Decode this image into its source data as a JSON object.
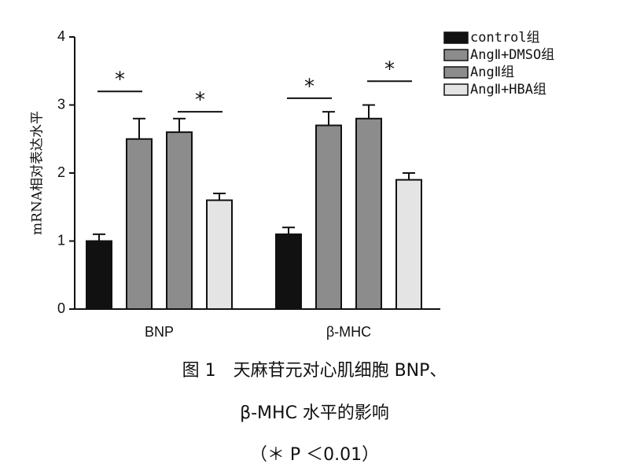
{
  "chart_data": {
    "type": "bar",
    "ylabel": "mRNA相对表达水平",
    "categories": [
      "BNP",
      "β-MHC"
    ],
    "series": [
      {
        "name": "control组",
        "color": "#111111",
        "values": [
          1.0,
          1.1
        ],
        "errors": [
          0.1,
          0.1
        ]
      },
      {
        "name": "AngⅡ+DMSO组",
        "color": "#8c8c8c",
        "values": [
          2.5,
          2.7
        ],
        "errors": [
          0.3,
          0.2
        ]
      },
      {
        "name": "AngⅡ组",
        "color": "#8c8c8c",
        "values": [
          2.6,
          2.8
        ],
        "errors": [
          0.2,
          0.2
        ]
      },
      {
        "name": "AngⅡ+HBA组",
        "color": "#e4e4e4",
        "values": [
          1.6,
          1.9
        ],
        "errors": [
          0.1,
          0.1
        ]
      }
    ],
    "ylim": [
      0,
      4
    ],
    "yticks": [
      0,
      1,
      2,
      3,
      4
    ],
    "legend": "top-right",
    "annotations": [
      {
        "text": "*",
        "category": 0,
        "from": 0,
        "to": 1,
        "y": 3.2
      },
      {
        "text": "*",
        "category": 0,
        "from": 2,
        "to": 3,
        "y": 2.9
      },
      {
        "text": "*",
        "category": 1,
        "from": 0,
        "to": 1,
        "y": 3.1
      },
      {
        "text": "*",
        "category": 1,
        "from": 2,
        "to": 3,
        "y": 3.35
      }
    ],
    "caption": [
      "图 1　天麻苷元对心肌细胞 BNP、",
      "β-MHC 水平的影响",
      "（＊ P ＜0.01）"
    ]
  }
}
